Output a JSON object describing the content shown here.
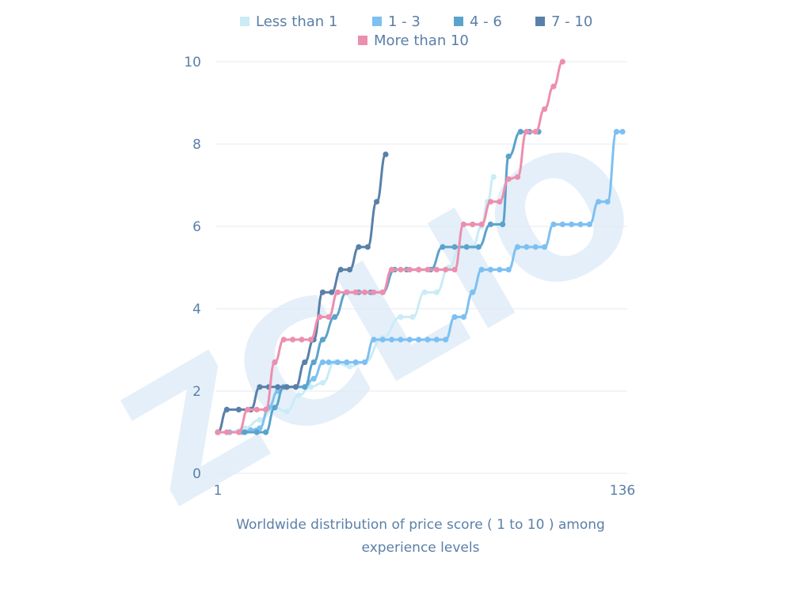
{
  "chart_data": {
    "type": "line",
    "title": "",
    "xlabel_lines": [
      "Worldwide distribution of price score ( 1 to 10 ) among",
      "experience levels"
    ],
    "ylabel": "",
    "xlim": [
      1,
      136
    ],
    "ylim": [
      0,
      10
    ],
    "y_ticks": [
      "0",
      "2",
      "4",
      "6",
      "8",
      "10"
    ],
    "x_ticks": [
      "1",
      "136"
    ],
    "grid": "horizontal",
    "legend_position": "top",
    "watermark": "ZCLIO",
    "series": [
      {
        "name": "Less than 1",
        "color": "#c9ecf6",
        "x": [
          1,
          5,
          10,
          15,
          20,
          24,
          28,
          32,
          36,
          40,
          45,
          50,
          56,
          62,
          66,
          70,
          74,
          78,
          82,
          86,
          89,
          91,
          93
        ],
        "y": [
          1,
          1,
          1.1,
          1.3,
          1.6,
          1.5,
          1.9,
          2.1,
          2.2,
          2.7,
          2.6,
          2.7,
          3.3,
          3.8,
          3.8,
          4.4,
          4.4,
          5.0,
          5.5,
          5.5,
          6.0,
          6.6,
          7.2
        ]
      },
      {
        "name": "1 - 3",
        "color": "#7dc0f2",
        "x": [
          1,
          5,
          9,
          12,
          15,
          18,
          21,
          24,
          27,
          30,
          33,
          36,
          38,
          41,
          44,
          47,
          50,
          53,
          56,
          59,
          62,
          65,
          68,
          71,
          74,
          77,
          80,
          83,
          86,
          89,
          92,
          95,
          98,
          101,
          104,
          107,
          110,
          113,
          116,
          119,
          122,
          125,
          128,
          131,
          134,
          136
        ],
        "y": [
          1,
          1,
          1,
          1.05,
          1.1,
          1.6,
          2.0,
          2.1,
          2.1,
          2.1,
          2.3,
          2.7,
          2.7,
          2.7,
          2.7,
          2.7,
          2.7,
          3.25,
          3.25,
          3.25,
          3.25,
          3.25,
          3.25,
          3.25,
          3.25,
          3.25,
          3.8,
          3.8,
          4.4,
          4.95,
          4.95,
          4.95,
          4.95,
          5.5,
          5.5,
          5.5,
          5.5,
          6.05,
          6.05,
          6.05,
          6.05,
          6.05,
          6.6,
          6.6,
          8.3,
          8.3
        ]
      },
      {
        "name": "4 - 6",
        "color": "#5aa3cc",
        "x": [
          1,
          10,
          14,
          17,
          20,
          23,
          27,
          30,
          33,
          36,
          40,
          44,
          48,
          52,
          56,
          60,
          64,
          68,
          72,
          76,
          80,
          84,
          88,
          92,
          96,
          98,
          102,
          105,
          108
        ],
        "y": [
          1,
          1,
          1,
          1,
          1.6,
          2.1,
          2.1,
          2.1,
          2.7,
          3.25,
          3.8,
          4.4,
          4.4,
          4.4,
          4.4,
          4.95,
          4.95,
          4.95,
          4.95,
          5.5,
          5.5,
          5.5,
          5.5,
          6.05,
          6.05,
          7.7,
          8.3,
          8.3,
          8.3
        ]
      },
      {
        "name": "7 - 10",
        "color": "#5a80a8",
        "x": [
          1,
          4,
          8,
          12,
          15,
          18,
          21,
          24,
          27,
          30,
          33,
          36,
          39,
          42,
          45,
          48,
          51,
          54,
          57
        ],
        "y": [
          1,
          1.55,
          1.55,
          1.55,
          2.1,
          2.1,
          2.1,
          2.1,
          2.1,
          2.7,
          3.25,
          4.4,
          4.4,
          4.95,
          4.95,
          5.5,
          5.5,
          6.6,
          7.75
        ]
      },
      {
        "name": "More than 10",
        "color": "#ec8fae",
        "x": [
          1,
          4,
          8,
          11,
          14,
          17,
          20,
          23,
          26,
          29,
          32,
          35,
          38,
          41,
          44,
          47,
          50,
          53,
          56,
          59,
          62,
          65,
          68,
          71,
          74,
          77,
          80,
          83,
          86,
          89,
          92,
          95,
          98,
          101,
          104,
          107,
          110,
          113,
          116
        ],
        "y": [
          1,
          1,
          1,
          1.55,
          1.55,
          1.55,
          2.7,
          3.25,
          3.25,
          3.25,
          3.25,
          3.8,
          3.8,
          4.4,
          4.4,
          4.4,
          4.4,
          4.4,
          4.4,
          4.95,
          4.95,
          4.95,
          4.95,
          4.95,
          4.95,
          4.95,
          4.95,
          6.05,
          6.05,
          6.05,
          6.6,
          6.6,
          7.15,
          7.2,
          8.3,
          8.3,
          8.85,
          9.4,
          10
        ]
      }
    ]
  }
}
